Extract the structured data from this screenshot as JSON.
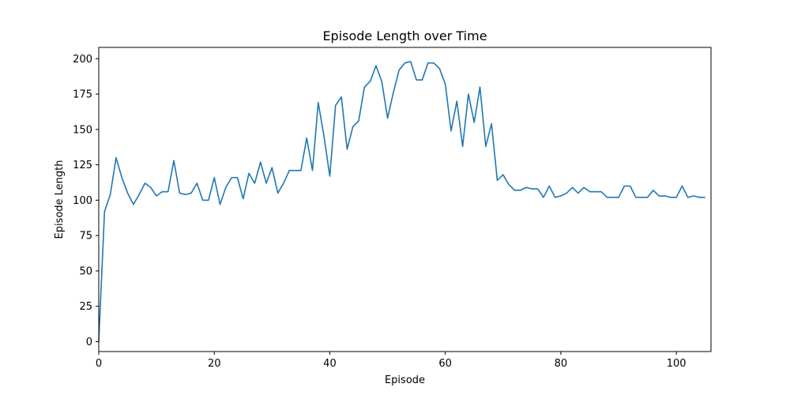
{
  "chart_data": {
    "type": "line",
    "title": "Episode Length over Time",
    "xlabel": "Episode",
    "ylabel": "Episode Length",
    "xlim": [
      0,
      106
    ],
    "ylim": [
      -7,
      208
    ],
    "xticks": [
      0,
      20,
      40,
      60,
      80,
      100
    ],
    "yticks": [
      0,
      25,
      50,
      75,
      100,
      125,
      150,
      175,
      200
    ],
    "grid": false,
    "legend": "none",
    "series": [
      {
        "color": "#1f77b4",
        "x": [
          0,
          1,
          2,
          3,
          4,
          5,
          6,
          7,
          8,
          9,
          10,
          11,
          12,
          13,
          14,
          15,
          16,
          17,
          18,
          19,
          20,
          21,
          22,
          23,
          24,
          25,
          26,
          27,
          28,
          29,
          30,
          31,
          32,
          33,
          34,
          35,
          36,
          37,
          38,
          39,
          40,
          41,
          42,
          43,
          44,
          45,
          46,
          47,
          48,
          49,
          50,
          51,
          52,
          53,
          54,
          55,
          56,
          57,
          58,
          59,
          60,
          61,
          62,
          63,
          64,
          65,
          66,
          67,
          68,
          69,
          70,
          71,
          72,
          73,
          74,
          75,
          76,
          77,
          78,
          79,
          80,
          81,
          82,
          83,
          84,
          85,
          86,
          87,
          88,
          89,
          90,
          91,
          92,
          93,
          94,
          95,
          96,
          97,
          98,
          99,
          100,
          101,
          102,
          103,
          104,
          105
        ],
        "y": [
          0,
          92,
          104,
          130,
          116,
          105,
          97,
          104,
          112,
          109,
          103,
          106,
          106,
          128,
          105,
          104,
          105,
          112,
          100,
          100,
          116,
          97,
          109,
          116,
          116,
          101,
          119,
          112,
          127,
          112,
          123,
          105,
          112,
          121,
          121,
          121,
          144,
          121,
          169,
          145,
          117,
          167,
          173,
          136,
          152,
          156,
          180,
          184,
          195,
          184,
          158,
          176,
          192,
          197,
          198,
          185,
          185,
          197,
          197,
          193,
          182,
          149,
          170,
          138,
          175,
          155,
          180,
          138,
          154,
          114,
          118,
          111,
          107,
          107,
          109,
          108,
          108,
          102,
          110,
          102,
          103,
          105,
          109,
          105,
          109,
          106,
          106,
          106,
          102,
          102,
          102,
          110,
          110,
          102,
          102,
          102,
          107,
          103,
          103,
          102,
          102,
          110,
          102,
          103,
          102,
          102
        ]
      }
    ]
  }
}
